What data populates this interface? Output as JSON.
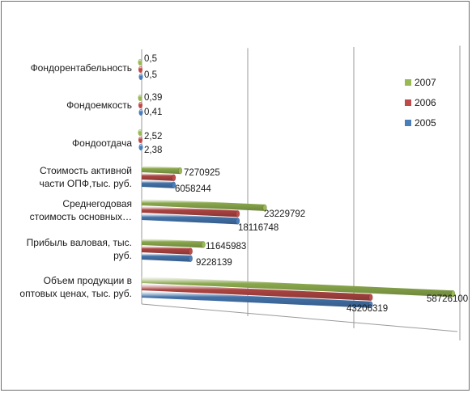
{
  "chart_data": {
    "type": "bar",
    "orientation": "horizontal",
    "style": "3d-cylinder",
    "categories": [
      "Объем продукции в оптовых ценах, тыс. руб.",
      "Прибыль валовая, тыс. руб.",
      "Среднегодовая стоимость основных…",
      "Стоимость активной части ОПФ,тыс. руб.",
      "Фондоотдача",
      "Фондоемкость",
      "Фондорентабельность"
    ],
    "series": [
      {
        "name": "2005",
        "color": "#4a7ebb",
        "values": [
          43206319,
          9228139,
          18116748,
          6058244,
          2.38,
          0.41,
          0.5
        ],
        "labels": [
          "43206319",
          "9228139",
          "18116748",
          "6058244",
          "2,38",
          "0,41",
          "0,5"
        ]
      },
      {
        "name": "2006",
        "color": "#be4b48",
        "values": [
          43206319,
          9228139,
          18116748,
          6058244,
          2.52,
          0.39,
          0.5
        ],
        "labels": [
          "",
          "",
          "",
          "",
          "",
          "",
          ""
        ]
      },
      {
        "name": "2007",
        "color": "#98b954",
        "values": [
          58726100,
          11645983,
          23229792,
          7270925,
          2.52,
          0.39,
          0.5
        ],
        "labels": [
          "58726100",
          "11645983",
          "23229792",
          "7270925",
          "2,52",
          "0,39",
          "0,5"
        ]
      }
    ],
    "xlim": [
      0,
      60000000
    ],
    "grid": true,
    "legend_position": "right",
    "legend": [
      "2007",
      "2006",
      "2005"
    ]
  }
}
